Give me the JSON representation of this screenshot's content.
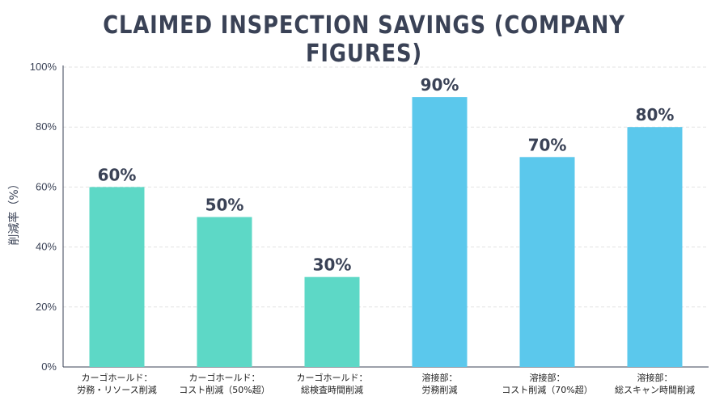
{
  "chart_data": {
    "type": "bar",
    "title": "CLAIMED INSPECTION SAVINGS (COMPANY FIGURES)",
    "xlabel": "",
    "ylabel": "削減率（%）",
    "ylim": [
      0,
      100
    ],
    "yticks": [
      "0%",
      "20%",
      "40%",
      "60%",
      "80%",
      "100%"
    ],
    "ytick_values": [
      0,
      20,
      40,
      60,
      80,
      100
    ],
    "grid": true,
    "categories": [
      [
        "カーゴホールド：",
        "労務・リソース削減"
      ],
      [
        "カーゴホールド：",
        "コスト削減（50%超）"
      ],
      [
        "カーゴホールド：",
        "総検査時間削減"
      ],
      [
        "溶接部：",
        "労務削減"
      ],
      [
        "溶接部：",
        "コスト削減（70%超）"
      ],
      [
        "溶接部：",
        "総スキャン時間削減"
      ]
    ],
    "values": [
      60,
      50,
      30,
      90,
      70,
      80
    ],
    "value_labels": [
      "60%",
      "50%",
      "30%",
      "90%",
      "70%",
      "80%"
    ],
    "colors": [
      "#5dd8c6",
      "#5dd8c6",
      "#5dd8c6",
      "#5bc8ec",
      "#5bc8ec",
      "#5bc8ec"
    ],
    "axis_color": "#3a4256",
    "grid_color": "#e3e3e3"
  }
}
